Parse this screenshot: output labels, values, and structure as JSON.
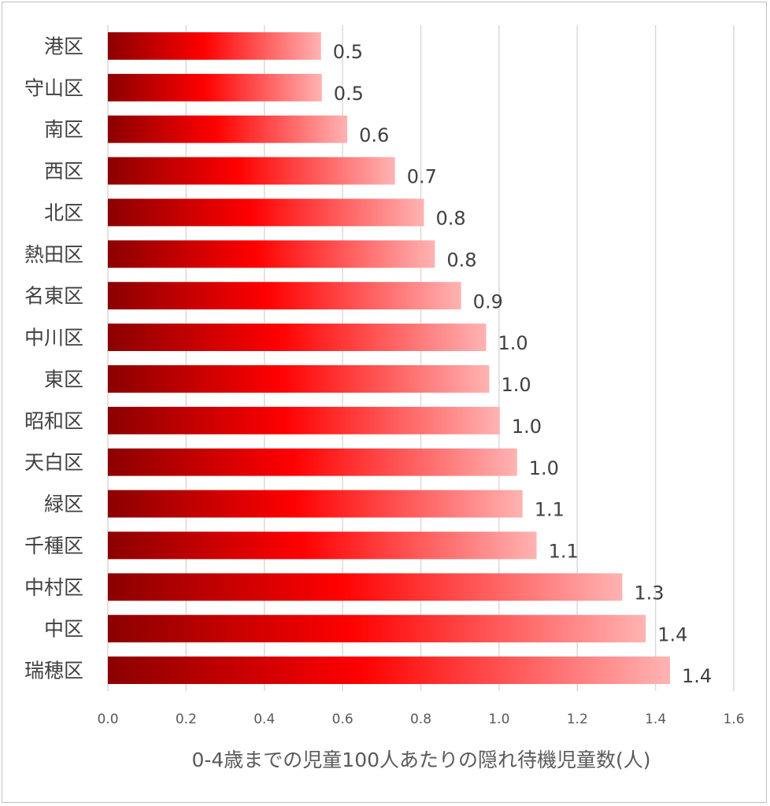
{
  "chart_data": {
    "type": "bar",
    "orientation": "horizontal",
    "categories": [
      "港区",
      "守山区",
      "南区",
      "西区",
      "北区",
      "熱田区",
      "名東区",
      "中川区",
      "東区",
      "昭和区",
      "天白区",
      "緑区",
      "千種区",
      "中村区",
      "中区",
      "瑞穂区"
    ],
    "values": [
      0.545,
      0.547,
      0.612,
      0.734,
      0.808,
      0.836,
      0.903,
      0.967,
      0.975,
      1.002,
      1.046,
      1.06,
      1.096,
      1.315,
      1.375,
      1.437
    ],
    "data_labels": [
      "0.5",
      "0.5",
      "0.6",
      "0.7",
      "0.8",
      "0.8",
      "0.9",
      "1.0",
      "1.0",
      "1.0",
      "1.0",
      "1.1",
      "1.1",
      "1.3",
      "1.4",
      "1.4"
    ],
    "xlim": [
      0,
      1.6
    ],
    "xticks": [
      "0.0",
      "0.2",
      "0.4",
      "0.6",
      "0.8",
      "1.0",
      "1.2",
      "1.4",
      "1.6"
    ],
    "xlabel": "0-4歳までの児童100人あたりの隠れ待機児童数(人)",
    "grid": "vertical",
    "colors": {
      "bar_dark": "#8b0000",
      "bar_mid": "#ff0000",
      "bar_light": "#ffb3b3",
      "grid": "#d9d9d9"
    }
  }
}
